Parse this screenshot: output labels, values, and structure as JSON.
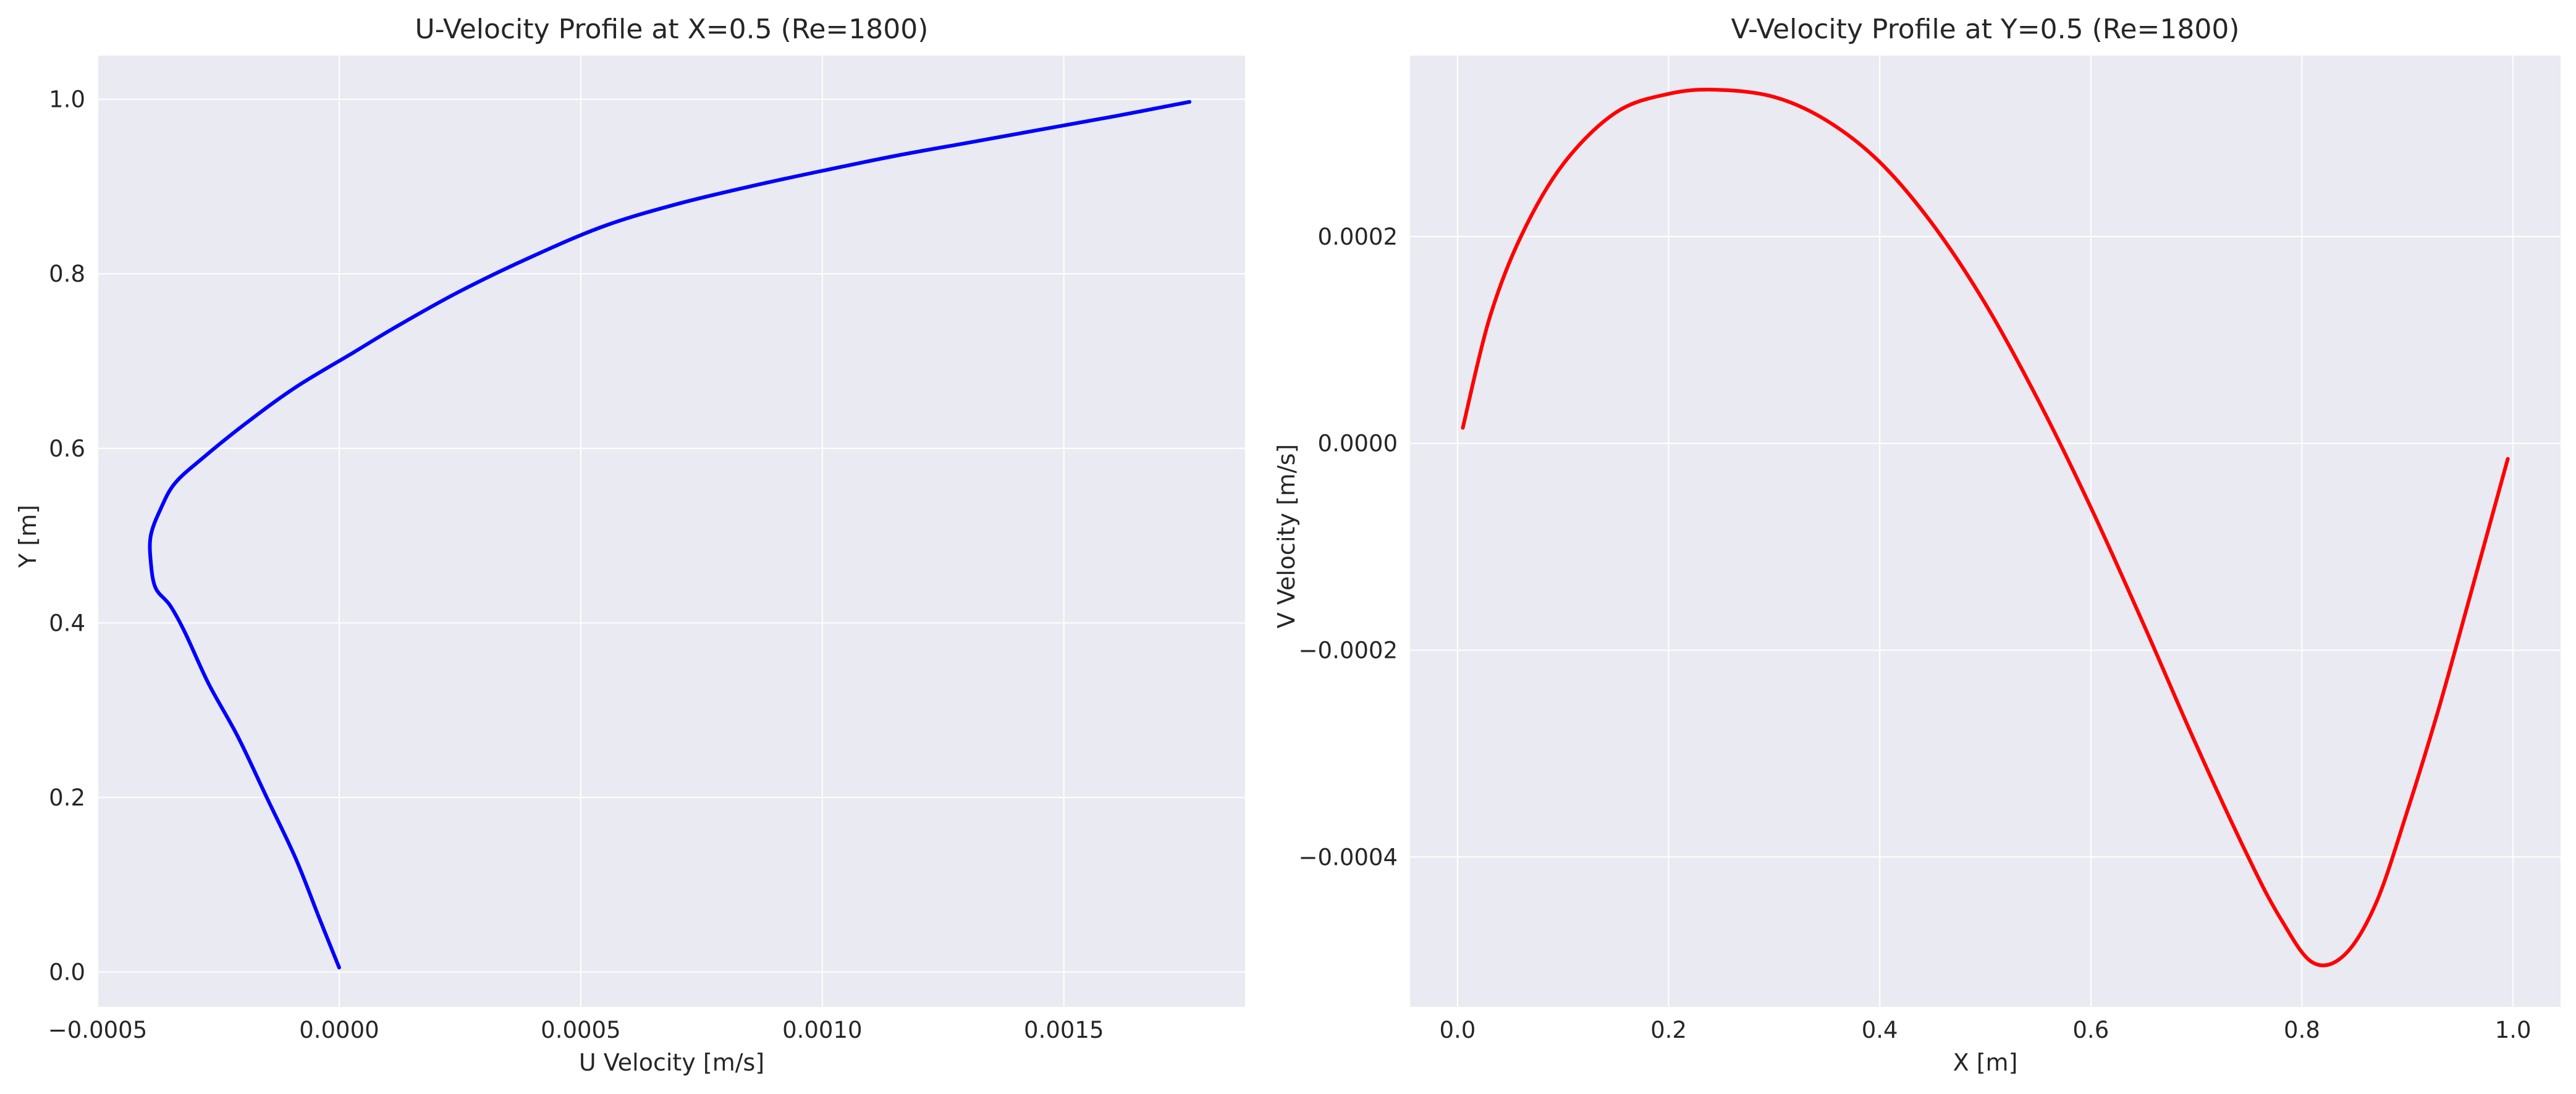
{
  "chart_data": [
    {
      "type": "line",
      "title": "U-Velocity Profile at X=0.5 (Re=1800)",
      "xlabel": "U Velocity [m/s]",
      "ylabel": "Y [m]",
      "xlim": [
        -0.0005,
        0.001875
      ],
      "ylim": [
        -0.04,
        1.05
      ],
      "xticks": [
        -0.0005,
        0.0,
        0.0005,
        0.001,
        0.0015
      ],
      "xtick_labels": [
        "−0.0005",
        "0.0000",
        "0.0005",
        "0.0010",
        "0.0015"
      ],
      "yticks": [
        0.0,
        0.2,
        0.4,
        0.6,
        0.8,
        1.0
      ],
      "ytick_labels": [
        "0.0",
        "0.2",
        "0.4",
        "0.6",
        "0.8",
        "1.0"
      ],
      "grid": true,
      "series": [
        {
          "color": "#0000ff",
          "x": [
            0.0,
            -4e-05,
            -9e-05,
            -0.00015,
            -0.00021,
            -0.00027,
            -0.00032,
            -0.00035,
            -0.00038,
            -0.00039,
            -0.00039,
            -0.00037,
            -0.00034,
            -0.00028,
            -0.00019,
            -9e-05,
            3e-05,
            0.00012,
            0.00025,
            0.0004,
            0.00055,
            0.0007,
            0.00085,
            0.001,
            0.00115,
            0.0013,
            0.00145,
            0.0016,
            0.00176
          ],
          "y": [
            0.005,
            0.06,
            0.13,
            0.2,
            0.27,
            0.33,
            0.39,
            0.42,
            0.44,
            0.47,
            0.5,
            0.53,
            0.56,
            0.59,
            0.63,
            0.67,
            0.71,
            0.74,
            0.78,
            0.82,
            0.855,
            0.88,
            0.9,
            0.918,
            0.935,
            0.95,
            0.965,
            0.98,
            0.997
          ]
        }
      ]
    },
    {
      "type": "line",
      "title": "V-Velocity Profile at Y=0.5 (Re=1800)",
      "xlabel": "X [m]",
      "ylabel": "V Velocity [m/s]",
      "xlim": [
        -0.045,
        1.045
      ],
      "ylim": [
        -0.000545,
        0.000375
      ],
      "xticks": [
        0.0,
        0.2,
        0.4,
        0.6,
        0.8,
        1.0
      ],
      "xtick_labels": [
        "0.0",
        "0.2",
        "0.4",
        "0.6",
        "0.8",
        "1.0"
      ],
      "yticks": [
        -0.0004,
        -0.0002,
        0.0,
        0.0002
      ],
      "ytick_labels": [
        "−0.0004",
        "−0.0002",
        "0.0000",
        "0.0002"
      ],
      "grid": true,
      "series": [
        {
          "color": "#ff0000",
          "x": [
            0.005,
            0.03,
            0.06,
            0.1,
            0.15,
            0.2,
            0.245,
            0.3,
            0.35,
            0.4,
            0.45,
            0.5,
            0.55,
            0.6,
            0.65,
            0.7,
            0.75,
            0.78,
            0.81,
            0.84,
            0.87,
            0.9,
            0.93,
            0.96,
            0.995
          ],
          "y": [
            1.5e-05,
            0.00012,
            0.0002,
            0.00027,
            0.00032,
            0.000338,
            0.000342,
            0.000335,
            0.000312,
            0.000272,
            0.000212,
            0.000135,
            4.2e-05,
            -6.2e-05,
            -0.000175,
            -0.000292,
            -0.000402,
            -0.00046,
            -0.000502,
            -0.000495,
            -0.000445,
            -0.000355,
            -0.000255,
            -0.000145,
            -1.5e-05
          ]
        }
      ]
    }
  ]
}
